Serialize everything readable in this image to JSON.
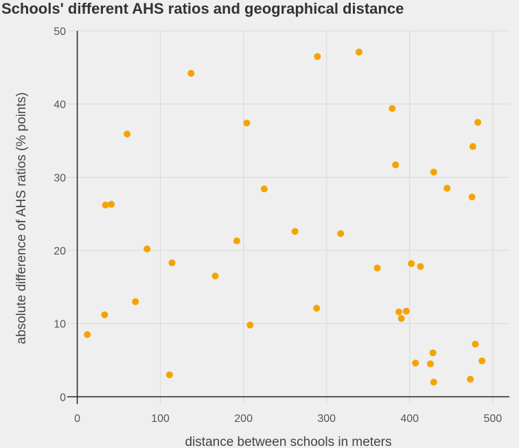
{
  "chart_data": {
    "type": "scatter",
    "title": "Schools' different AHS ratios and geographical distance",
    "xlabel": "distance between schools in meters",
    "ylabel": "absolute difference of AHS ratios (% points)",
    "xlim": [
      -12,
      520
    ],
    "ylim": [
      -1,
      50
    ],
    "x_ticks": [
      0,
      100,
      200,
      300,
      400,
      500
    ],
    "y_ticks": [
      0,
      10,
      20,
      30,
      40,
      50
    ],
    "grid": true,
    "colors": {
      "points": "#f5a300",
      "grid": "#d9d9d9",
      "axis": "#222222",
      "background": "#efefef"
    },
    "series": [
      {
        "points": [
          {
            "x": 12,
            "y": 8.5
          },
          {
            "x": 33,
            "y": 11.2
          },
          {
            "x": 34,
            "y": 26.2
          },
          {
            "x": 41,
            "y": 26.3
          },
          {
            "x": 60,
            "y": 35.9
          },
          {
            "x": 70,
            "y": 13.0
          },
          {
            "x": 84,
            "y": 20.2
          },
          {
            "x": 111,
            "y": 3.0
          },
          {
            "x": 114,
            "y": 18.3
          },
          {
            "x": 137,
            "y": 44.2
          },
          {
            "x": 166,
            "y": 16.5
          },
          {
            "x": 192,
            "y": 21.3
          },
          {
            "x": 204,
            "y": 37.4
          },
          {
            "x": 208,
            "y": 9.8
          },
          {
            "x": 225,
            "y": 28.4
          },
          {
            "x": 262,
            "y": 22.6
          },
          {
            "x": 288,
            "y": 12.1
          },
          {
            "x": 289,
            "y": 46.5
          },
          {
            "x": 317,
            "y": 22.3
          },
          {
            "x": 339,
            "y": 47.1
          },
          {
            "x": 361,
            "y": 17.6
          },
          {
            "x": 379,
            "y": 39.4
          },
          {
            "x": 383,
            "y": 31.7
          },
          {
            "x": 387,
            "y": 11.6
          },
          {
            "x": 390,
            "y": 10.7
          },
          {
            "x": 396,
            "y": 11.7
          },
          {
            "x": 402,
            "y": 18.2
          },
          {
            "x": 407,
            "y": 4.6
          },
          {
            "x": 413,
            "y": 17.8
          },
          {
            "x": 425,
            "y": 4.5
          },
          {
            "x": 428,
            "y": 6.0
          },
          {
            "x": 429,
            "y": 2.0
          },
          {
            "x": 429,
            "y": 30.7
          },
          {
            "x": 445,
            "y": 28.5
          },
          {
            "x": 473,
            "y": 2.4
          },
          {
            "x": 475,
            "y": 27.3
          },
          {
            "x": 476,
            "y": 34.2
          },
          {
            "x": 479,
            "y": 7.2
          },
          {
            "x": 482,
            "y": 37.5
          },
          {
            "x": 487,
            "y": 4.9
          }
        ]
      }
    ]
  }
}
